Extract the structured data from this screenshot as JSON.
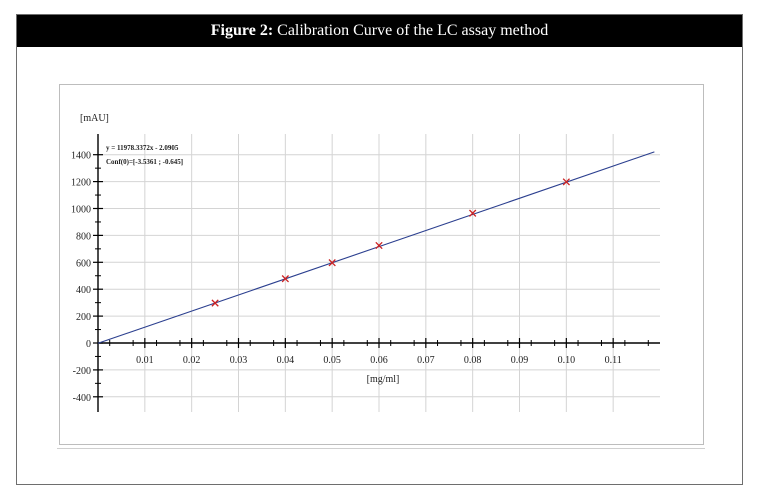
{
  "figure": {
    "title_bold": "Figure 2:",
    "title_rest": " Calibration Curve of the LC assay method"
  },
  "chart_data": {
    "type": "scatter",
    "title": "",
    "xlabel": "[mg/ml]",
    "ylabel": "[mAU]",
    "xlim": [
      0,
      0.12
    ],
    "ylim": [
      -450,
      1450
    ],
    "x_ticks": [
      0.01,
      0.02,
      0.03,
      0.04,
      0.05,
      0.06,
      0.07,
      0.08,
      0.09,
      0.1,
      0.11
    ],
    "x_tick_labels": [
      "0.01",
      "0.02",
      "0.03",
      "0.04",
      "0.05",
      "0.06",
      "0.07",
      "0.08",
      "0.09",
      "0.10",
      "0.11"
    ],
    "y_ticks": [
      -400,
      -200,
      0,
      200,
      400,
      600,
      800,
      1000,
      1200,
      1400
    ],
    "y_tick_labels": [
      "-400",
      "-200",
      "0",
      "200",
      "400",
      "600",
      "800",
      "1000",
      "1200",
      "1400"
    ],
    "grid": true,
    "points": {
      "x": [
        0.025,
        0.04,
        0.05,
        0.06,
        0.08,
        0.1
      ],
      "y": [
        297,
        478,
        597,
        725,
        965,
        1198
      ]
    },
    "fit": {
      "slope": 11978.3372,
      "intercept": -2.0905
    },
    "annotations": [
      "y = 11978.3372x - 2.0905",
      "Conf(0)=[-3.5361 ; -0.645]"
    ],
    "colors": {
      "points": "#cc2222",
      "fit_line": "#2b3f8f",
      "grid": "#d4d4d4",
      "axes": "#000000"
    }
  }
}
